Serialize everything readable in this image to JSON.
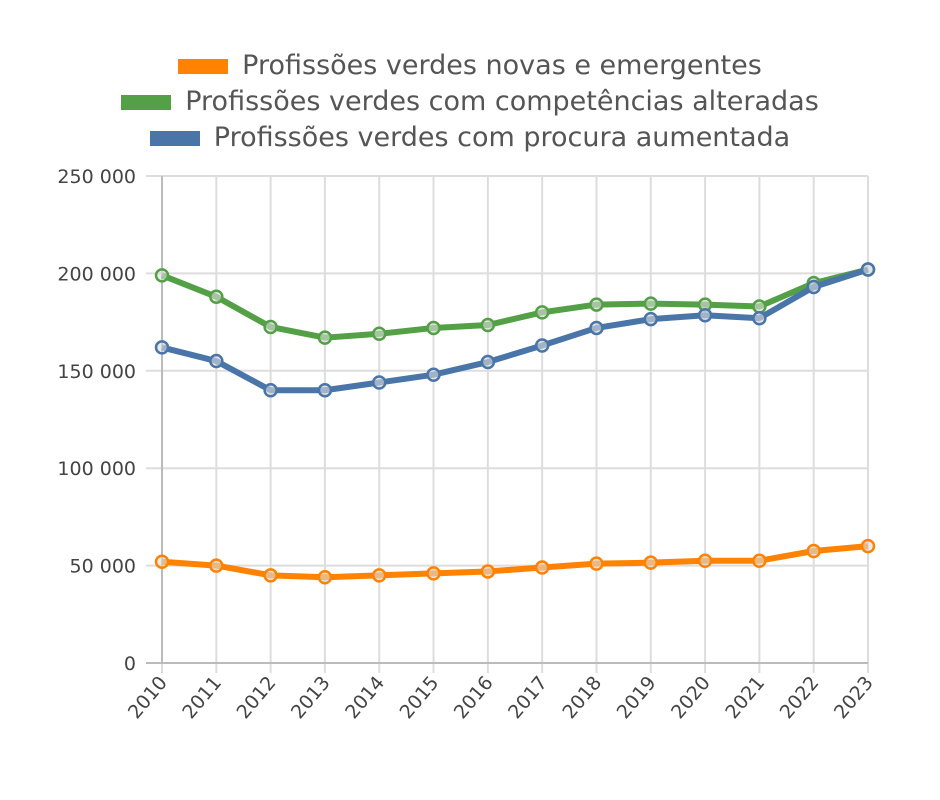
{
  "chart_data": {
    "type": "line",
    "title": "",
    "xlabel": "",
    "ylabel": "",
    "x": [
      "2010",
      "2011",
      "2012",
      "2013",
      "2014",
      "2015",
      "2016",
      "2017",
      "2018",
      "2019",
      "2020",
      "2021",
      "2022",
      "2023"
    ],
    "ylim": [
      0,
      250000
    ],
    "yticks": [
      "0",
      "50 000",
      "100 000",
      "150 000",
      "200 000",
      "250 000"
    ],
    "grid": true,
    "legend_position": "top",
    "series": [
      {
        "name": "Profissões verdes novas e emergentes",
        "color": "#ff8200",
        "values": [
          52000,
          50000,
          45000,
          44000,
          45000,
          46000,
          47000,
          49000,
          51000,
          51500,
          52500,
          52500,
          57500,
          60000
        ]
      },
      {
        "name": "Profissões verdes com competências alteradas",
        "color": "#53a046",
        "values": [
          199000,
          188000,
          172500,
          167000,
          169000,
          172000,
          173500,
          180000,
          184000,
          184500,
          184000,
          183000,
          195000,
          202000
        ]
      },
      {
        "name": "Profissões verdes com procura aumentada",
        "color": "#4a75a8",
        "values": [
          162000,
          155000,
          140000,
          140000,
          144000,
          148000,
          154500,
          163000,
          172000,
          176500,
          178500,
          177000,
          193000,
          202000
        ]
      }
    ]
  }
}
